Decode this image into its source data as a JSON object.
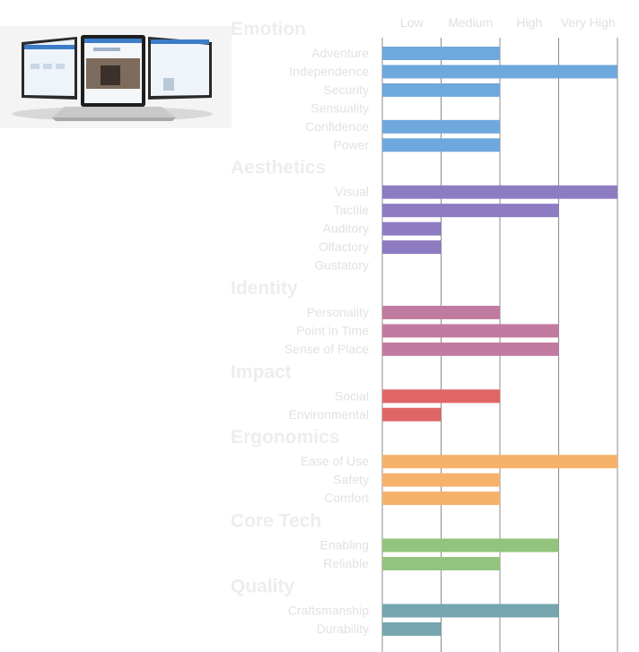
{
  "thumbnail": {
    "icon": "laptop-screens-image"
  },
  "chart_data": {
    "type": "bar",
    "orientation": "horizontal",
    "x_ticks": [
      "Low",
      "Medium",
      "High",
      "Very High"
    ],
    "xlim": [
      0,
      4
    ],
    "grid": true,
    "groups": [
      {
        "name": "Emotion",
        "color": "#6fa8dc",
        "items": [
          {
            "label": "Adventure",
            "value": 2
          },
          {
            "label": "Independence",
            "value": 4
          },
          {
            "label": "Security",
            "value": 2
          },
          {
            "label": "Sensuality",
            "value": 0
          },
          {
            "label": "Confidence",
            "value": 2
          },
          {
            "label": "Power",
            "value": 2
          }
        ]
      },
      {
        "name": "Aesthetics",
        "color": "#8e7cc3",
        "items": [
          {
            "label": "Visual",
            "value": 4
          },
          {
            "label": "Tactile",
            "value": 3
          },
          {
            "label": "Auditory",
            "value": 1
          },
          {
            "label": "Olfactory",
            "value": 1
          },
          {
            "label": "Gustatory",
            "value": 0
          }
        ]
      },
      {
        "name": "Identity",
        "color": "#c27ba0",
        "items": [
          {
            "label": "Personality",
            "value": 2
          },
          {
            "label": "Point in Time",
            "value": 3
          },
          {
            "label": "Sense of Place",
            "value": 3
          }
        ]
      },
      {
        "name": "Impact",
        "color": "#e06666",
        "items": [
          {
            "label": "Social",
            "value": 2
          },
          {
            "label": "Environmental",
            "value": 1
          }
        ]
      },
      {
        "name": "Ergonomics",
        "color": "#f6b26b",
        "items": [
          {
            "label": "Ease of Use",
            "value": 4
          },
          {
            "label": "Safety",
            "value": 2
          },
          {
            "label": "Comfort",
            "value": 2
          }
        ]
      },
      {
        "name": "Core Tech",
        "color": "#93c47d",
        "items": [
          {
            "label": "Enabling",
            "value": 3
          },
          {
            "label": "Reliable",
            "value": 2
          }
        ]
      },
      {
        "name": "Quality",
        "color": "#76a5af",
        "items": [
          {
            "label": "Craftsmanship",
            "value": 3
          },
          {
            "label": "Durability",
            "value": 1
          }
        ]
      }
    ]
  }
}
